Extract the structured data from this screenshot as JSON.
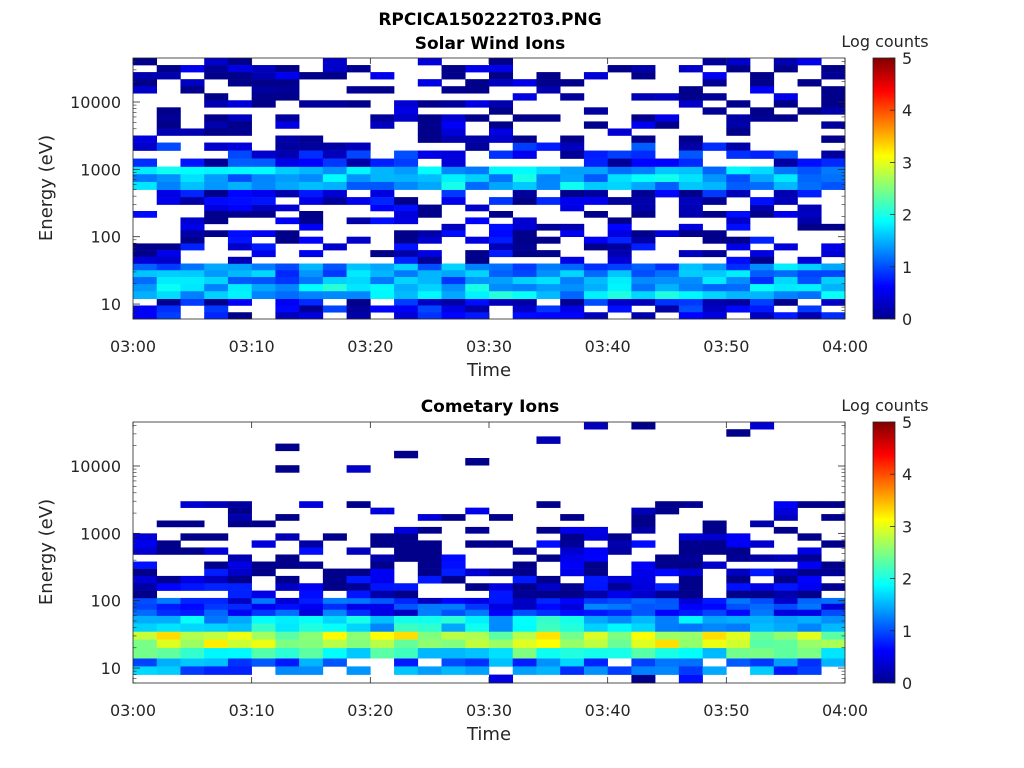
{
  "figure": {
    "title": "RPCICA150222T03.PNG"
  },
  "chart_data": [
    {
      "type": "heatmap",
      "title": "Solar Wind Ions",
      "xlabel": "Time",
      "ylabel": "Energy (eV)",
      "x_ticks": [
        "03:00",
        "03:10",
        "03:20",
        "03:30",
        "03:40",
        "03:50",
        "04:00"
      ],
      "x_range": [
        "03:00",
        "04:00"
      ],
      "y_scale": "log",
      "y_range": [
        6,
        45000
      ],
      "y_ticks": [
        10,
        100,
        1000,
        10000
      ],
      "y_tick_labels": [
        "10",
        "100",
        "1000",
        "10000"
      ],
      "colorbar": {
        "label": "Log counts",
        "range": [
          0,
          5
        ],
        "ticks": [
          "0",
          "1",
          "2",
          "3",
          "4",
          "5"
        ],
        "colormap": "jet"
      },
      "time_bins": 30,
      "bands": [
        {
          "energy_range_eV": [
            6,
            12
          ],
          "typical_log_counts": 0.5,
          "fill": 0.7
        },
        {
          "energy_range_eV": [
            12,
            20
          ],
          "typical_log_counts": 1.6,
          "fill": 1.0
        },
        {
          "energy_range_eV": [
            20,
            40
          ],
          "typical_log_counts": 1.3,
          "fill": 1.0
        },
        {
          "energy_range_eV": [
            40,
            100
          ],
          "typical_log_counts": 0.3,
          "fill": 0.5
        },
        {
          "energy_range_eV": [
            100,
            300
          ],
          "typical_log_counts": 0.2,
          "fill": 0.45
        },
        {
          "energy_range_eV": [
            300,
            500
          ],
          "typical_log_counts": 0.4,
          "fill": 0.8
        },
        {
          "energy_range_eV": [
            500,
            1100
          ],
          "typical_log_counts": 1.5,
          "fill": 1.0
        },
        {
          "energy_range_eV": [
            1100,
            2500
          ],
          "typical_log_counts": 0.6,
          "fill": 0.6
        },
        {
          "energy_range_eV": [
            2500,
            45000
          ],
          "typical_log_counts": 0.1,
          "fill": 0.4
        }
      ]
    },
    {
      "type": "heatmap",
      "title": "Cometary Ions",
      "xlabel": "Time",
      "ylabel": "Energy (eV)",
      "x_ticks": [
        "03:00",
        "03:10",
        "03:20",
        "03:30",
        "03:40",
        "03:50",
        "04:00"
      ],
      "x_range": [
        "03:00",
        "04:00"
      ],
      "y_scale": "log",
      "y_range": [
        6,
        45000
      ],
      "y_ticks": [
        10,
        100,
        1000,
        10000
      ],
      "y_tick_labels": [
        "10",
        "100",
        "1000",
        "10000"
      ],
      "colorbar": {
        "label": "Log counts",
        "range": [
          0,
          5
        ],
        "ticks": [
          "0",
          "1",
          "2",
          "3",
          "4",
          "5"
        ],
        "colormap": "jet"
      },
      "time_bins": 30,
      "bands": [
        {
          "energy_range_eV": [
            6,
            8
          ],
          "typical_log_counts": 0.3,
          "fill": 0.2
        },
        {
          "energy_range_eV": [
            8,
            14
          ],
          "typical_log_counts": 1.2,
          "fill": 0.85
        },
        {
          "energy_range_eV": [
            14,
            20
          ],
          "typical_log_counts": 2.0,
          "fill": 1.0
        },
        {
          "energy_range_eV": [
            20,
            35
          ],
          "typical_log_counts": 2.8,
          "fill": 1.0
        },
        {
          "energy_range_eV": [
            35,
            60
          ],
          "typical_log_counts": 1.7,
          "fill": 1.0
        },
        {
          "energy_range_eV": [
            60,
            110
          ],
          "typical_log_counts": 0.8,
          "fill": 1.0
        },
        {
          "energy_range_eV": [
            110,
            300
          ],
          "typical_log_counts": 0.3,
          "fill": 0.7
        },
        {
          "energy_range_eV": [
            300,
            1000
          ],
          "typical_log_counts": 0.2,
          "fill": 0.5
        },
        {
          "energy_range_eV": [
            1000,
            3000
          ],
          "typical_log_counts": 0.1,
          "fill": 0.25
        },
        {
          "energy_range_eV": [
            3000,
            45000
          ],
          "typical_log_counts": 0.1,
          "fill": 0.03
        }
      ]
    }
  ]
}
